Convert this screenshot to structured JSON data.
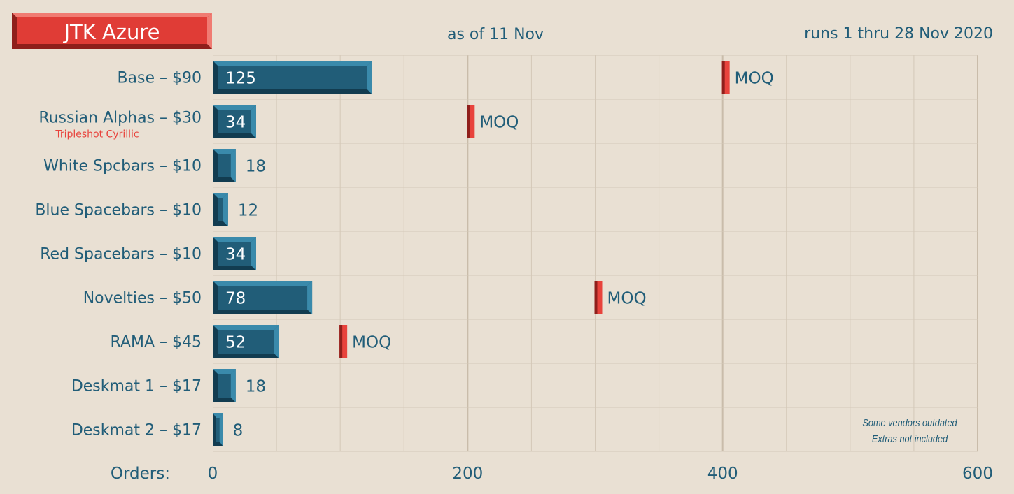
{
  "header": {
    "title": "JTK Azure",
    "as_of": "as of 11 Nov",
    "run_dates": "runs 1 thru 28 Nov 2020"
  },
  "colors": {
    "background": "#e9e0d3",
    "bar_front": "#215d78",
    "bar_light": "#3a8aab",
    "bar_dark": "#123c50",
    "moq": "#e8433c",
    "moq_dark": "#8f1f1b",
    "text": "#215d78",
    "grid": "#d4c8b8",
    "subtitle_red": "#e8433c"
  },
  "chart_data": {
    "type": "bar",
    "orientation": "horizontal",
    "x_axis_label": "Orders:",
    "xlim": [
      0,
      600
    ],
    "ticks": [
      0,
      200,
      400,
      600
    ],
    "grid": true,
    "categories": [
      {
        "label": "Base – $90",
        "value": 125,
        "moq": 400
      },
      {
        "label": "Russian Alphas – $30",
        "sublabel": "Tripleshot Cyrillic",
        "value": 34,
        "moq": 200
      },
      {
        "label": "White Spcbars – $10",
        "value": 18
      },
      {
        "label": "Blue Spacebars – $10",
        "value": 12
      },
      {
        "label": "Red Spacebars – $10",
        "value": 34
      },
      {
        "label": "Novelties – $50",
        "value": 78,
        "moq": 300
      },
      {
        "label": "RAMA – $45",
        "value": 52,
        "moq": 100
      },
      {
        "label": "Deskmat 1 – $17",
        "value": 18
      },
      {
        "label": "Deskmat 2 – $17",
        "value": 8
      }
    ],
    "moq_label": "MOQ"
  },
  "notes": {
    "line1": "Some vendors outdated",
    "line2": "Extras not included"
  }
}
